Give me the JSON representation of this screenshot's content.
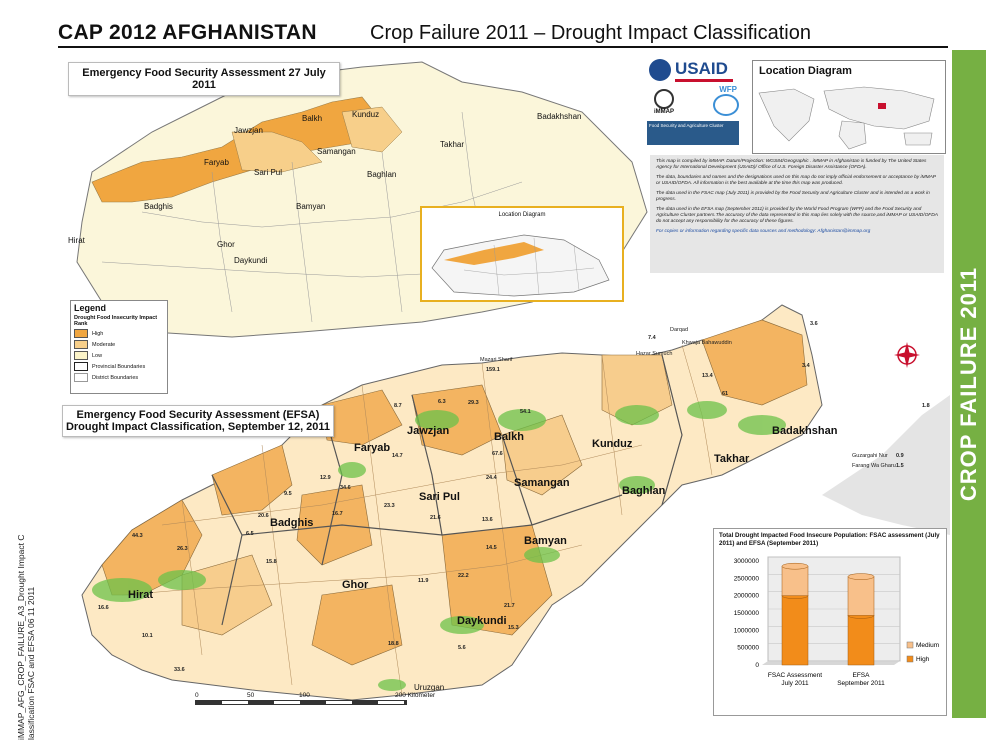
{
  "header": {
    "title_lead": "CAP 2012   AFGHANISTAN",
    "title_sub": "Crop Failure 2011 – Drought Impact Classification"
  },
  "sidebar": {
    "label": "CROP FAILURE 2011"
  },
  "top_map": {
    "title": "Emergency Food Security Assessment 27 July 2011",
    "labels": [
      "Balkh",
      "Kunduz",
      "Badakhshan",
      "Jawzjan",
      "Samangan",
      "Takhar",
      "Faryab",
      "Sari Pul",
      "Baghlan",
      "Badghis",
      "Bamyan",
      "Hirat",
      "Ghor",
      "Daykundi"
    ],
    "inset_title": "Location Diagram"
  },
  "legend": {
    "title": "Legend",
    "subtitle": "Drought Food Insecurity Impact Rank",
    "items": [
      {
        "label": "High",
        "color": "#f0a640"
      },
      {
        "label": "Moderate",
        "color": "#f7cf8a"
      },
      {
        "label": "Low",
        "color": "#fbf3c8"
      },
      {
        "label": "Provincial Boundaries",
        "color": "#ffffff"
      },
      {
        "label": "District Boundaries",
        "color": "#ffffff"
      }
    ]
  },
  "logos": {
    "usaid": "USAID",
    "immap": "iMMAP",
    "wfp": "WFP",
    "fsac": "Food Security and Agriculture Cluster"
  },
  "location_diagram": {
    "title": "Location Diagram"
  },
  "notes": [
    "This map is compiled by iMMAP. Datum/Projection: WGS84/Geographic . iMMAP in Afghanistan is funded by The United States Agency for International Development (USAID)/ Office of U.S. Foreign Disaster Assistance (OFDA).",
    "The data, boundaries and names and the designations used on this map do not imply official endorsement or acceptance by iMMAP or USAID/OFDA. All information is the best available at the time this map was produced.",
    "The data used in the FSAC map (July 2011) is provided by the Food Security and Agriculture Cluster and is intended as a work in progress.",
    "The data used in the EFSA map (September 2011) is provided by the World Food Program (WFP) and the Food Security and Agriculture Cluster partners.The accuracy of the data represented in this map lies solely with the source,and iMMAP or USAID/OFDA do not accept any responsibility for the accuracy of these figures.",
    "For copies or information regarding specific data sources and methodology: Afghanistan@immap.org"
  ],
  "efsa_map": {
    "title_line1": "Emergency Food Security Assessment (EFSA)",
    "title_line2": "Drought Impact Classification, September 12, 2011",
    "province_labels": [
      "Faryab",
      "Jawzjan",
      "Balkh",
      "Kunduz",
      "Takhar",
      "Badakhshan",
      "Sari Pul",
      "Samangan",
      "Baghlan",
      "Badghis",
      "Bamyan",
      "Ghor",
      "Daykundi",
      "Hirat",
      "Uruzgan"
    ],
    "values": [
      "159.1",
      "44.3",
      "26.3",
      "20.6",
      "21.6",
      "23.3",
      "16.7",
      "34.6",
      "33.6",
      "29.3",
      "54.1",
      "67.6",
      "61",
      "22.2",
      "21.7",
      "18.8",
      "15.3",
      "13.4",
      "10.1",
      "16.6",
      "9.5",
      "8.7",
      "6.3",
      "12.9",
      "14.7",
      "11.9",
      "24.4",
      "13.6",
      "14.5",
      "6.5",
      "7.4",
      "3.6",
      "15.8",
      "5.6",
      "3.4",
      "1.8",
      "0.9",
      "1.5"
    ],
    "district_names": [
      "Mazari Sharif",
      "Darqad",
      "Khwaja Bahawuddin",
      "Hazar Sumuch",
      "Guzargahi Nur",
      "Farang Wa Gharu"
    ],
    "scale_label": "200 Kilometer",
    "scale_ticks": [
      "0",
      "50",
      "100",
      "200 Kilometer"
    ]
  },
  "side_caption": {
    "line1": "iMMAP_AFG_CROP_FAILURE_A3_Drought Impact C",
    "line2": "lassification FSAC and EFSA 06 11 2011"
  },
  "chart_data": {
    "type": "bar",
    "title": "Total Drought Impacted Food Insecure Population: FSAC assessment (July 2011) and EFSA (September 2011)",
    "categories": [
      "FSAC Assessment July 2011",
      "EFSA September 2011"
    ],
    "series": [
      {
        "name": "High",
        "values": [
          2000000,
          1430000
        ],
        "color": "#f28c1a"
      },
      {
        "name": "Medium",
        "values": [
          850000,
          1120000
        ],
        "color": "#f8c08a"
      }
    ],
    "yticks": [
      "3000000",
      "2500000",
      "2000000",
      "1500000",
      "1000000",
      "500000",
      "0"
    ],
    "ylim": [
      0,
      3000000
    ],
    "stacked": true,
    "legend_position": "right"
  }
}
